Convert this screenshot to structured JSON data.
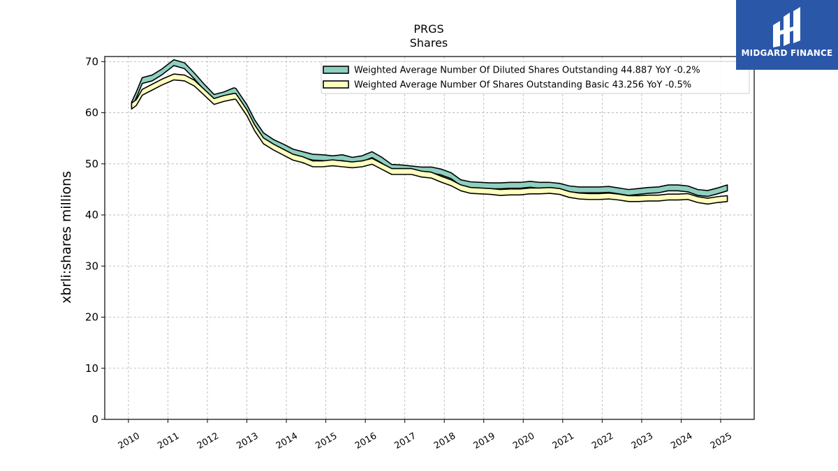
{
  "chart_data": {
    "type": "line",
    "title": "PRGS",
    "subtitle": "Shares",
    "xlabel": "",
    "ylabel": "xbrli:shares millions",
    "xlim": [
      2009.4,
      2025.85
    ],
    "ylim": [
      0,
      71
    ],
    "yticks": [
      0,
      10,
      20,
      30,
      40,
      50,
      60,
      70
    ],
    "xticks": [
      "2010",
      "2011",
      "2012",
      "2013",
      "2014",
      "2015",
      "2016",
      "2017",
      "2018",
      "2019",
      "2020",
      "2021",
      "2022",
      "2023",
      "2024",
      "2025"
    ],
    "grid": true,
    "legend_position": "top-right",
    "series": [
      {
        "name": "Weighted Average Number Of Diluted Shares Outstanding  44.887 YoY -0.2%",
        "color": "#8ecfc0",
        "x": [
          2010.08,
          2010.2,
          2010.35,
          2010.6,
          2010.85,
          2011.15,
          2011.42,
          2011.67,
          2011.92,
          2012.17,
          2012.42,
          2012.67,
          2012.72,
          2013.0,
          2013.2,
          2013.42,
          2013.67,
          2013.92,
          2014.17,
          2014.42,
          2014.67,
          2014.92,
          2015.17,
          2015.42,
          2015.67,
          2015.92,
          2016.17,
          2016.42,
          2016.67,
          2016.92,
          2017.17,
          2017.42,
          2017.67,
          2017.92,
          2018.17,
          2018.42,
          2018.67,
          2018.92,
          2019.17,
          2019.42,
          2019.67,
          2019.92,
          2020.17,
          2020.42,
          2020.67,
          2020.92,
          2021.17,
          2021.42,
          2021.67,
          2021.92,
          2022.17,
          2022.42,
          2022.67,
          2022.92,
          2023.17,
          2023.42,
          2023.67,
          2023.92,
          2024.17,
          2024.42,
          2024.67,
          2024.92,
          2025.17
        ],
        "values": [
          61.5,
          63.5,
          66.3,
          66.8,
          68.0,
          69.8,
          69.2,
          67.2,
          65.0,
          63.0,
          63.5,
          64.3,
          64.2,
          61.0,
          58.0,
          55.5,
          54.2,
          53.3,
          52.3,
          51.8,
          51.3,
          51.2,
          51.0,
          51.2,
          50.7,
          51.0,
          51.8,
          50.7,
          49.3,
          49.2,
          49.0,
          48.8,
          48.8,
          48.4,
          47.7,
          46.3,
          45.9,
          45.8,
          45.7,
          45.7,
          45.8,
          45.8,
          46.0,
          45.8,
          45.8,
          45.6,
          45.1,
          44.9,
          44.9,
          44.9,
          45.0,
          44.7,
          44.4,
          44.6,
          44.8,
          44.9,
          45.3,
          45.3,
          45.1,
          44.4,
          44.2,
          44.7,
          45.3
        ]
      },
      {
        "name": "Weighted Average Number Of Shares Outstanding Basic  43.256 YoY -0.5%",
        "color": "#ffffbf",
        "x": [
          2010.08,
          2010.2,
          2010.35,
          2010.6,
          2010.85,
          2011.15,
          2011.42,
          2011.67,
          2011.92,
          2012.17,
          2012.42,
          2012.67,
          2012.72,
          2013.0,
          2013.2,
          2013.42,
          2013.67,
          2013.92,
          2014.17,
          2014.42,
          2014.67,
          2014.92,
          2015.17,
          2015.42,
          2015.67,
          2015.92,
          2016.17,
          2016.42,
          2016.67,
          2016.92,
          2017.17,
          2017.42,
          2017.67,
          2017.92,
          2018.17,
          2018.42,
          2018.67,
          2018.92,
          2019.17,
          2019.42,
          2019.67,
          2019.92,
          2020.17,
          2020.42,
          2020.67,
          2020.92,
          2021.17,
          2021.42,
          2021.67,
          2021.92,
          2022.17,
          2022.42,
          2022.67,
          2022.92,
          2023.17,
          2023.42,
          2023.67,
          2023.92,
          2024.17,
          2024.42,
          2024.67,
          2024.92,
          2025.17
        ],
        "values": [
          61.3,
          62.0,
          64.0,
          65.0,
          66.0,
          67.0,
          66.8,
          65.8,
          64.0,
          62.2,
          62.8,
          63.2,
          63.2,
          60.0,
          57.0,
          54.5,
          53.3,
          52.3,
          51.3,
          50.8,
          50.0,
          50.0,
          50.2,
          50.0,
          49.8,
          50.0,
          50.5,
          49.5,
          48.5,
          48.5,
          48.5,
          48.0,
          47.8,
          47.0,
          46.3,
          45.3,
          44.8,
          44.7,
          44.6,
          44.4,
          44.5,
          44.5,
          44.7,
          44.7,
          44.8,
          44.6,
          44.0,
          43.7,
          43.6,
          43.6,
          43.7,
          43.5,
          43.2,
          43.2,
          43.3,
          43.3,
          43.5,
          43.5,
          43.6,
          43.0,
          42.7,
          43.0,
          43.2
        ]
      }
    ]
  },
  "logo": {
    "text": "MIDGARD FINANCE",
    "background": "#2b57a8"
  }
}
